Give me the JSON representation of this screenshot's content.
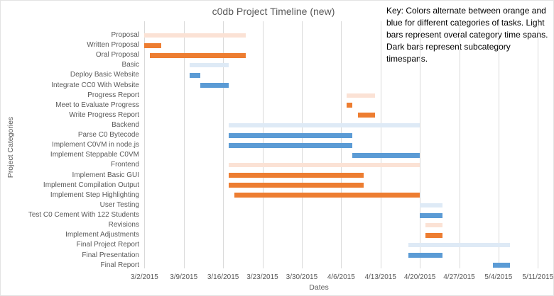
{
  "title": "c0db Project Timeline (new)",
  "key_note": "Key: Colors alternate between orange and blue for different categories of tasks. Light bars represent overal category time spans. Dark bars represent subcategory timespans.",
  "colors": {
    "dark_orange": "#ED7D31",
    "light_orange": "#FBE2D5",
    "dark_blue": "#5B9BD5",
    "light_blue": "#DEEAF6",
    "gridline": "#D9D9D9",
    "axis_text": "#595959"
  },
  "chart_data": {
    "type": "bar",
    "subtype": "gantt",
    "title": "c0db Project Timeline (new)",
    "xlabel": "Dates",
    "ylabel": "Project Categories",
    "x_start": "3/2/2015",
    "x_end": "5/11/2015",
    "x_ticks": [
      "3/2/2015",
      "3/9/2015",
      "3/16/2015",
      "3/23/2015",
      "3/30/2015",
      "4/6/2015",
      "4/13/2015",
      "4/20/2015",
      "4/27/2015",
      "5/4/2015",
      "5/11/2015"
    ],
    "grid": true,
    "tasks": [
      {
        "label": "Proposal",
        "start": "3/2/2015",
        "end": "3/20/2015",
        "shade": "light",
        "hue": "orange"
      },
      {
        "label": "Written Proposal",
        "start": "3/2/2015",
        "end": "3/5/2015",
        "shade": "dark",
        "hue": "orange"
      },
      {
        "label": "Oral Proposal",
        "start": "3/3/2015",
        "end": "3/20/2015",
        "shade": "dark",
        "hue": "orange"
      },
      {
        "label": "Basic",
        "start": "3/10/2015",
        "end": "3/17/2015",
        "shade": "light",
        "hue": "blue"
      },
      {
        "label": "Deploy Basic Website",
        "start": "3/10/2015",
        "end": "3/12/2015",
        "shade": "dark",
        "hue": "blue"
      },
      {
        "label": "Integrate CC0 With Website",
        "start": "3/12/2015",
        "end": "3/17/2015",
        "shade": "dark",
        "hue": "blue"
      },
      {
        "label": "Progress Report",
        "start": "4/7/2015",
        "end": "4/12/2015",
        "shade": "light",
        "hue": "orange"
      },
      {
        "label": "Meet to Evaluate Progress",
        "start": "4/7/2015",
        "end": "4/8/2015",
        "shade": "dark",
        "hue": "orange"
      },
      {
        "label": "Write Progress Report",
        "start": "4/9/2015",
        "end": "4/12/2015",
        "shade": "dark",
        "hue": "orange"
      },
      {
        "label": "Backend",
        "start": "3/17/2015",
        "end": "4/20/2015",
        "shade": "light",
        "hue": "blue"
      },
      {
        "label": "Parse C0 Bytecode",
        "start": "3/17/2015",
        "end": "4/8/2015",
        "shade": "dark",
        "hue": "blue"
      },
      {
        "label": "Implement C0VM in node.js",
        "start": "3/17/2015",
        "end": "4/8/2015",
        "shade": "dark",
        "hue": "blue"
      },
      {
        "label": "Implement Steppable C0VM",
        "start": "4/8/2015",
        "end": "4/20/2015",
        "shade": "dark",
        "hue": "blue"
      },
      {
        "label": "Frontend",
        "start": "3/17/2015",
        "end": "4/20/2015",
        "shade": "light",
        "hue": "orange"
      },
      {
        "label": "Implement Basic GUI",
        "start": "3/17/2015",
        "end": "4/10/2015",
        "shade": "dark",
        "hue": "orange"
      },
      {
        "label": "Implement Compilation Output",
        "start": "3/17/2015",
        "end": "4/10/2015",
        "shade": "dark",
        "hue": "orange"
      },
      {
        "label": "Implement Step Highlighting",
        "start": "3/18/2015",
        "end": "4/20/2015",
        "shade": "dark",
        "hue": "orange"
      },
      {
        "label": "User Testing",
        "start": "4/20/2015",
        "end": "4/24/2015",
        "shade": "light",
        "hue": "blue"
      },
      {
        "label": "Test C0 Cement With 122 Students",
        "start": "4/20/2015",
        "end": "4/24/2015",
        "shade": "dark",
        "hue": "blue"
      },
      {
        "label": "Revisions",
        "start": "4/21/2015",
        "end": "4/24/2015",
        "shade": "light",
        "hue": "orange"
      },
      {
        "label": "Implement Adjustments",
        "start": "4/21/2015",
        "end": "4/24/2015",
        "shade": "dark",
        "hue": "orange"
      },
      {
        "label": "Final Project Report",
        "start": "4/18/2015",
        "end": "5/6/2015",
        "shade": "light",
        "hue": "blue"
      },
      {
        "label": "Final Presentation",
        "start": "4/18/2015",
        "end": "4/24/2015",
        "shade": "dark",
        "hue": "blue"
      },
      {
        "label": "Final Report",
        "start": "5/3/2015",
        "end": "5/6/2015",
        "shade": "dark",
        "hue": "blue"
      }
    ]
  }
}
